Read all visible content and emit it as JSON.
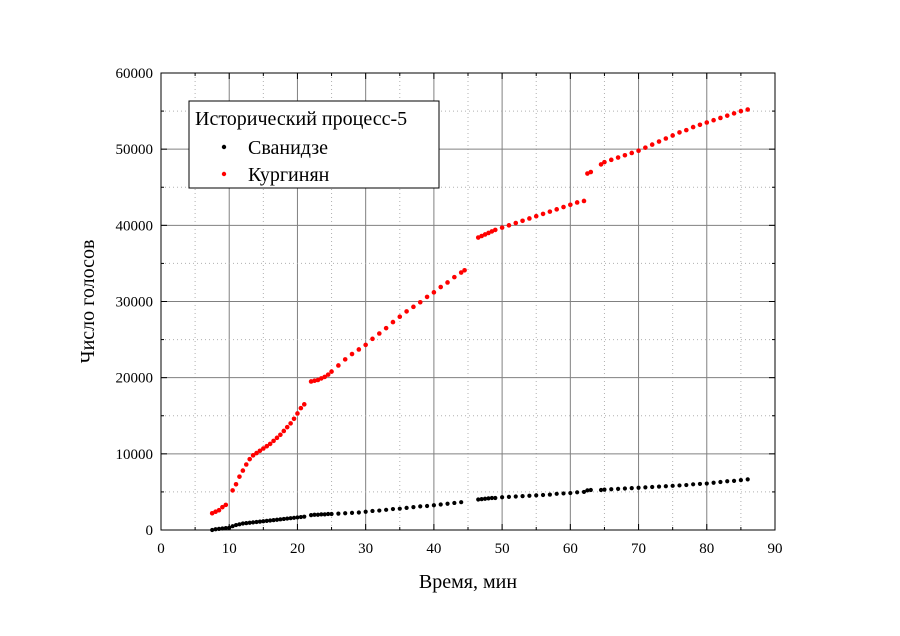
{
  "chart_data": {
    "type": "scatter",
    "xlabel": "Время, мин",
    "ylabel": "Число голосов",
    "xlim": [
      0,
      90
    ],
    "ylim": [
      0,
      60000
    ],
    "xticks": [
      "0",
      "10",
      "20",
      "30",
      "40",
      "50",
      "60",
      "70",
      "80",
      "90"
    ],
    "yticks": [
      "0",
      "10000",
      "20000",
      "30000",
      "40000",
      "50000",
      "60000"
    ],
    "grid": true,
    "legend": {
      "title": "Исторический процесс-5",
      "position": "top-left"
    },
    "series": [
      {
        "name": "Сванидзе",
        "color": "#000000",
        "points": [
          [
            7.5,
            0
          ],
          [
            8,
            100
          ],
          [
            8.5,
            150
          ],
          [
            9,
            200
          ],
          [
            9.5,
            250
          ],
          [
            10,
            300
          ],
          [
            10.5,
            500
          ],
          [
            11,
            650
          ],
          [
            11.5,
            750
          ],
          [
            12,
            850
          ],
          [
            12.5,
            900
          ],
          [
            13,
            950
          ],
          [
            13.5,
            1000
          ],
          [
            14,
            1050
          ],
          [
            14.5,
            1100
          ],
          [
            15,
            1150
          ],
          [
            15.5,
            1200
          ],
          [
            16,
            1250
          ],
          [
            16.5,
            1300
          ],
          [
            17,
            1350
          ],
          [
            17.5,
            1400
          ],
          [
            18,
            1450
          ],
          [
            18.5,
            1500
          ],
          [
            19,
            1550
          ],
          [
            19.5,
            1600
          ],
          [
            20,
            1650
          ],
          [
            20.5,
            1700
          ],
          [
            21,
            1750
          ],
          [
            22,
            1950
          ],
          [
            22.5,
            2000
          ],
          [
            23,
            2000
          ],
          [
            23.5,
            2050
          ],
          [
            24,
            2050
          ],
          [
            24.5,
            2100
          ],
          [
            25,
            2100
          ],
          [
            26,
            2150
          ],
          [
            27,
            2200
          ],
          [
            28,
            2250
          ],
          [
            29,
            2300
          ],
          [
            30,
            2400
          ],
          [
            31,
            2500
          ],
          [
            32,
            2550
          ],
          [
            33,
            2650
          ],
          [
            34,
            2750
          ],
          [
            35,
            2800
          ],
          [
            36,
            2900
          ],
          [
            37,
            3000
          ],
          [
            38,
            3100
          ],
          [
            39,
            3150
          ],
          [
            40,
            3250
          ],
          [
            41,
            3350
          ],
          [
            42,
            3450
          ],
          [
            43,
            3550
          ],
          [
            44,
            3650
          ],
          [
            46.5,
            4000
          ],
          [
            47,
            4050
          ],
          [
            47.5,
            4100
          ],
          [
            48,
            4150
          ],
          [
            48.5,
            4200
          ],
          [
            49,
            4200
          ],
          [
            50,
            4300
          ],
          [
            51,
            4350
          ],
          [
            52,
            4400
          ],
          [
            53,
            4450
          ],
          [
            54,
            4500
          ],
          [
            55,
            4550
          ],
          [
            56,
            4600
          ],
          [
            57,
            4650
          ],
          [
            58,
            4750
          ],
          [
            59,
            4800
          ],
          [
            60,
            4850
          ],
          [
            61,
            4950
          ],
          [
            62,
            5000
          ],
          [
            62.5,
            5200
          ],
          [
            63,
            5250
          ],
          [
            64.5,
            5250
          ],
          [
            65,
            5300
          ],
          [
            66,
            5350
          ],
          [
            67,
            5400
          ],
          [
            68,
            5450
          ],
          [
            69,
            5500
          ],
          [
            70,
            5550
          ],
          [
            71,
            5600
          ],
          [
            72,
            5650
          ],
          [
            73,
            5700
          ],
          [
            74,
            5750
          ],
          [
            75,
            5800
          ],
          [
            76,
            5850
          ],
          [
            77,
            5900
          ],
          [
            78,
            6000
          ],
          [
            79,
            6050
          ],
          [
            80,
            6100
          ],
          [
            81,
            6200
          ],
          [
            82,
            6300
          ],
          [
            83,
            6400
          ],
          [
            84,
            6450
          ],
          [
            85,
            6550
          ],
          [
            86,
            6650
          ]
        ]
      },
      {
        "name": "Кургинян",
        "color": "#ff0000",
        "points": [
          [
            7.5,
            2200
          ],
          [
            8,
            2400
          ],
          [
            8.5,
            2600
          ],
          [
            9,
            3000
          ],
          [
            9.5,
            3300
          ],
          [
            10.5,
            5200
          ],
          [
            11,
            6000
          ],
          [
            11.5,
            7000
          ],
          [
            12,
            7800
          ],
          [
            12.5,
            8600
          ],
          [
            13,
            9300
          ],
          [
            13.5,
            9800
          ],
          [
            14,
            10100
          ],
          [
            14.5,
            10400
          ],
          [
            15,
            10700
          ],
          [
            15.5,
            11000
          ],
          [
            16,
            11300
          ],
          [
            16.5,
            11700
          ],
          [
            17,
            12100
          ],
          [
            17.5,
            12500
          ],
          [
            18,
            13000
          ],
          [
            18.5,
            13500
          ],
          [
            19,
            14000
          ],
          [
            19.5,
            14600
          ],
          [
            20,
            15300
          ],
          [
            20.5,
            16000
          ],
          [
            21,
            16500
          ],
          [
            22,
            19500
          ],
          [
            22.5,
            19600
          ],
          [
            23,
            19700
          ],
          [
            23.5,
            19900
          ],
          [
            24,
            20100
          ],
          [
            24.5,
            20400
          ],
          [
            25,
            20800
          ],
          [
            26,
            21600
          ],
          [
            27,
            22400
          ],
          [
            28,
            23100
          ],
          [
            29,
            23700
          ],
          [
            30,
            24300
          ],
          [
            31,
            25100
          ],
          [
            32,
            25800
          ],
          [
            33,
            26500
          ],
          [
            34,
            27300
          ],
          [
            35,
            28000
          ],
          [
            36,
            28700
          ],
          [
            37,
            29300
          ],
          [
            38,
            29900
          ],
          [
            39,
            30600
          ],
          [
            40,
            31200
          ],
          [
            41,
            31900
          ],
          [
            42,
            32500
          ],
          [
            43,
            33200
          ],
          [
            44,
            33800
          ],
          [
            44.5,
            34100
          ],
          [
            46.5,
            38400
          ],
          [
            47,
            38600
          ],
          [
            47.5,
            38800
          ],
          [
            48,
            39000
          ],
          [
            48.5,
            39200
          ],
          [
            49,
            39400
          ],
          [
            50,
            39700
          ],
          [
            51,
            40000
          ],
          [
            52,
            40300
          ],
          [
            53,
            40600
          ],
          [
            54,
            40900
          ],
          [
            55,
            41200
          ],
          [
            56,
            41500
          ],
          [
            57,
            41800
          ],
          [
            58,
            42100
          ],
          [
            59,
            42400
          ],
          [
            60,
            42700
          ],
          [
            61,
            43000
          ],
          [
            62,
            43200
          ],
          [
            62.5,
            46800
          ],
          [
            63,
            47000
          ],
          [
            64.5,
            48000
          ],
          [
            65,
            48300
          ],
          [
            66,
            48600
          ],
          [
            67,
            48900
          ],
          [
            68,
            49200
          ],
          [
            69,
            49500
          ],
          [
            70,
            49800
          ],
          [
            71,
            50200
          ],
          [
            72,
            50600
          ],
          [
            73,
            51000
          ],
          [
            74,
            51400
          ],
          [
            75,
            51800
          ],
          [
            76,
            52200
          ],
          [
            77,
            52500
          ],
          [
            78,
            52900
          ],
          [
            79,
            53200
          ],
          [
            80,
            53500
          ],
          [
            81,
            53800
          ],
          [
            82,
            54100
          ],
          [
            83,
            54400
          ],
          [
            84,
            54700
          ],
          [
            85,
            55000
          ],
          [
            86,
            55200
          ]
        ]
      }
    ]
  }
}
